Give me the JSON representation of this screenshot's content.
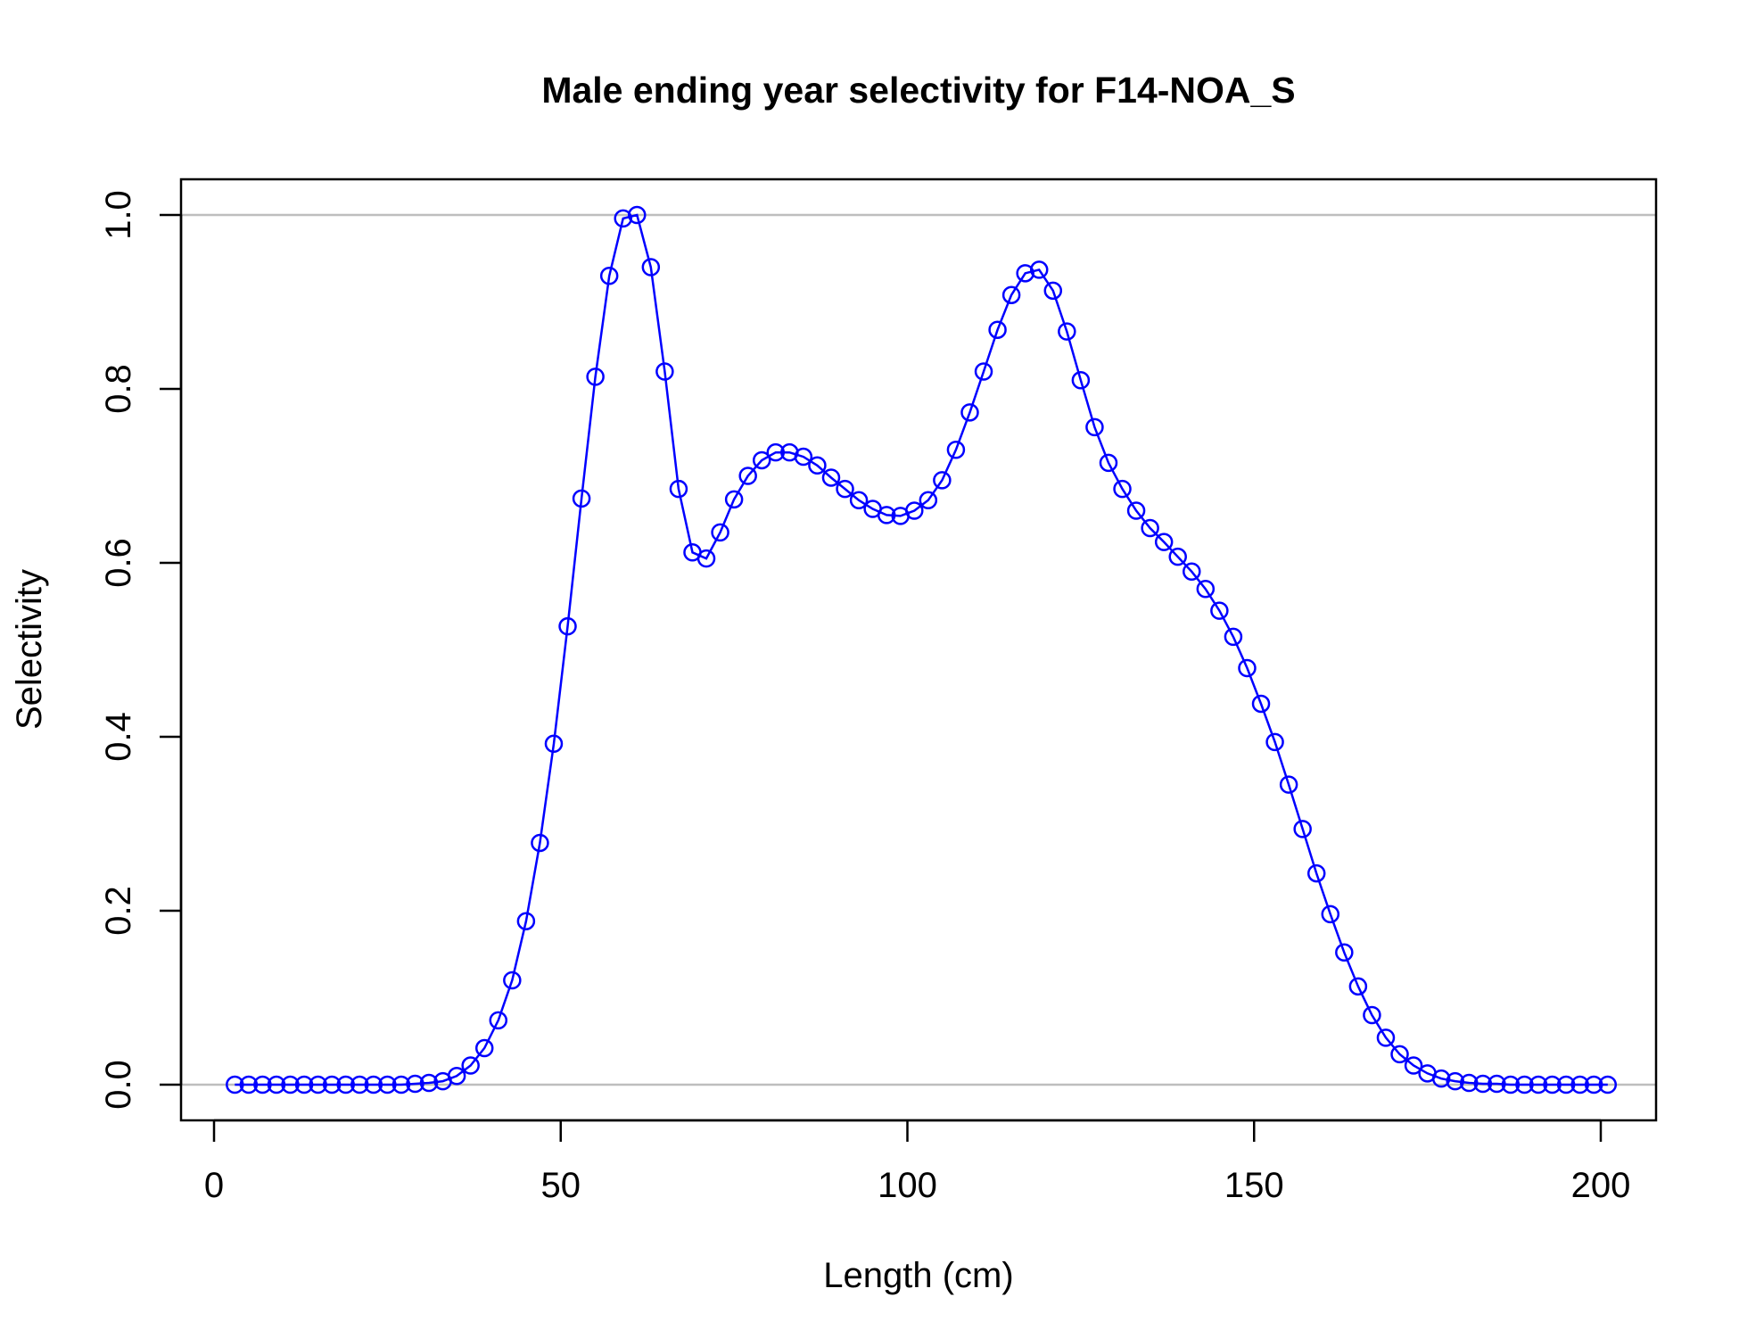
{
  "chart_data": {
    "type": "line",
    "title": "Male ending year selectivity for F14-NOA_S",
    "xlabel": "Length (cm)",
    "ylabel": "Selectivity",
    "xlim": [
      0,
      200
    ],
    "ylim": [
      0.0,
      1.0
    ],
    "x_ticks": [
      "0",
      "50",
      "100",
      "150",
      "200"
    ],
    "y_ticks": [
      "0.0",
      "0.2",
      "0.4",
      "0.6",
      "0.8",
      "1.0"
    ],
    "reference_lines": [
      0,
      1
    ],
    "reference_line_color": "#bebebe",
    "grid": false,
    "legend": "none",
    "markers": "open-circle",
    "series": [
      {
        "color": "#0000ff",
        "x": [
          3,
          5,
          7,
          9,
          11,
          13,
          15,
          17,
          19,
          21,
          23,
          25,
          27,
          29,
          31,
          33,
          35,
          37,
          39,
          41,
          43,
          45,
          47,
          49,
          51,
          53,
          55,
          57,
          59,
          61,
          63,
          65,
          67,
          69,
          71,
          73,
          75,
          77,
          79,
          81,
          83,
          85,
          87,
          89,
          91,
          93,
          95,
          97,
          99,
          101,
          103,
          105,
          107,
          109,
          111,
          113,
          115,
          117,
          119,
          121,
          123,
          125,
          127,
          129,
          131,
          133,
          135,
          137,
          139,
          141,
          143,
          145,
          147,
          149,
          151,
          153,
          155,
          157,
          159,
          161,
          163,
          165,
          167,
          169,
          171,
          173,
          175,
          177,
          179,
          181,
          183,
          185,
          187,
          189,
          191,
          193,
          195,
          197,
          199,
          201
        ],
        "values": [
          0,
          0,
          0,
          0,
          0,
          0,
          0,
          0,
          0,
          0,
          0,
          0,
          0,
          0.001,
          0.002,
          0.004,
          0.01,
          0.022,
          0.042,
          0.074,
          0.12,
          0.188,
          0.278,
          0.392,
          0.527,
          0.674,
          0.814,
          0.93,
          0.996,
          1.0,
          0.94,
          0.82,
          0.685,
          0.612,
          0.605,
          0.635,
          0.673,
          0.7,
          0.718,
          0.727,
          0.727,
          0.722,
          0.712,
          0.698,
          0.685,
          0.672,
          0.662,
          0.655,
          0.654,
          0.66,
          0.672,
          0.695,
          0.73,
          0.773,
          0.82,
          0.868,
          0.908,
          0.933,
          0.937,
          0.913,
          0.866,
          0.81,
          0.756,
          0.715,
          0.685,
          0.66,
          0.64,
          0.624,
          0.607,
          0.59,
          0.57,
          0.545,
          0.515,
          0.479,
          0.438,
          0.394,
          0.345,
          0.294,
          0.243,
          0.196,
          0.152,
          0.113,
          0.08,
          0.054,
          0.035,
          0.022,
          0.013,
          0.007,
          0.004,
          0.002,
          0.001,
          0.001,
          0,
          0,
          0,
          0,
          0,
          0,
          0,
          0
        ]
      }
    ]
  }
}
